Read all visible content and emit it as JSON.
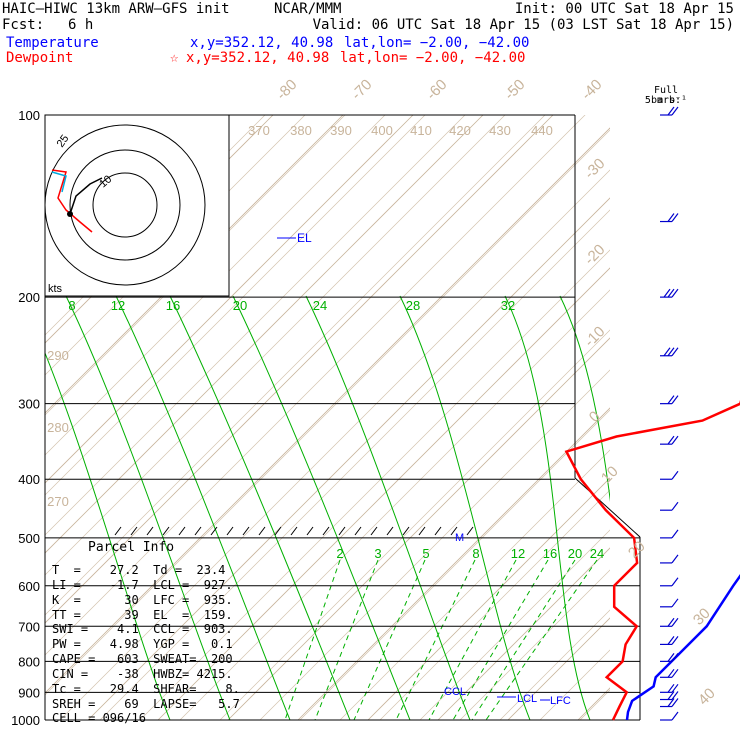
{
  "header": {
    "model": "HAIC–HIWC 13km ARW–GFS init",
    "org": "NCAR/MMM",
    "init": "Init: 00 UTC Sat 18 Apr 15",
    "fcst_label": "Fcst:",
    "fcst_value": "6 h",
    "valid": "Valid: 06 UTC Sat 18 Apr 15 (03 LST Sat 18 Apr 15)",
    "temperature_label": "Temperature",
    "dewpoint_label": "Dewpoint",
    "temp_xy": "x,y=352.12, 40.98",
    "temp_latlon": "lat,lon= −2.00, −42.00",
    "dew_star": "☆",
    "dew_xy": "x,y=352.12, 40.98",
    "dew_latlon": "lat,lon= −2.00, −42.00",
    "barb_legend_1": "Full barb:",
    "barb_legend_2": "5 m s⁻¹"
  },
  "colors": {
    "temperature": "#ff0000",
    "parcel": "#0000ff",
    "isotherm": "#c8b49b",
    "mixing_ratio": "#00b000",
    "isobar": "#000000",
    "barbs": "#0000cd"
  },
  "parcel_info": {
    "title": "Parcel Info",
    "rows": [
      "T  =    27.2  Td =  23.4",
      "LI =    -1.7  LCL =  927.",
      "K  =      30  LFC =  935.",
      "TT =      39  EL  =  159.",
      "SWI =    4.1  CCL =  903.",
      "PW =    4.98  YGP =   0.1",
      "CAPE =   603  SWEAT=  200",
      "CIN =    -38  HWBZ= 4215.",
      "Tc =    29.4  SHEAR=    8.",
      "SREH =    69  LAPSE=   5.7",
      "CELL = 096/16"
    ]
  },
  "chart_data": {
    "type": "line",
    "title": "",
    "ylabel": "",
    "xlabel": "",
    "y_scale": "log-pressure",
    "pressure_levels": [
      100,
      200,
      300,
      400,
      500,
      600,
      700,
      800,
      900,
      1000
    ],
    "isotherm_labels": [
      "-80",
      "-70",
      "-60",
      "-50",
      "-40",
      "-30",
      "-20",
      "-10",
      "0",
      "10",
      "20",
      "30",
      "40"
    ],
    "theta_labels": [
      "370",
      "380",
      "390",
      "400",
      "410",
      "420",
      "430",
      "440",
      "290",
      "280",
      "270"
    ],
    "mixing_ratio_labels_upper": [
      "8",
      "12",
      "16",
      "20",
      "24",
      "28",
      "32"
    ],
    "mixing_ratio_labels_lower": [
      "2",
      "3",
      "5",
      "8",
      "12",
      "16",
      "20",
      "24"
    ],
    "series": [
      {
        "points": [
          [
            100,
            -4
          ],
          [
            120,
            -8
          ],
          [
            140,
            -11
          ],
          [
            160,
            -14
          ],
          [
            180,
            -11
          ],
          [
            200,
            -6
          ],
          [
            250,
            -7
          ],
          [
            300,
            -2
          ],
          [
            320,
            -5
          ],
          [
            340,
            -15
          ],
          [
            360,
            -20
          ],
          [
            400,
            -14
          ],
          [
            450,
            -6
          ],
          [
            500,
            2
          ],
          [
            550,
            6
          ],
          [
            600,
            6
          ],
          [
            650,
            9
          ],
          [
            700,
            15
          ],
          [
            750,
            16
          ],
          [
            800,
            18
          ],
          [
            850,
            18
          ],
          [
            900,
            23
          ],
          [
            950,
            24
          ],
          [
            1000,
            25
          ]
        ]
      },
      {
        "points": [
          [
            100,
            0
          ],
          [
            120,
            -1
          ],
          [
            150,
            1
          ],
          [
            200,
            5
          ],
          [
            300,
            13
          ],
          [
            400,
            18
          ],
          [
            500,
            21
          ],
          [
            600,
            23
          ],
          [
            700,
            25
          ],
          [
            800,
            25
          ],
          [
            850,
            25
          ],
          [
            880,
            26
          ],
          [
            930,
            25
          ],
          [
            970,
            26
          ],
          [
            1000,
            27
          ]
        ]
      }
    ],
    "annotations": [
      "EL",
      "M",
      "CCL",
      "LCL",
      "LFC",
      "kts"
    ],
    "hodograph": {
      "ring_labels": [
        "25",
        "10"
      ],
      "points": [
        [
          -25,
          2
        ],
        [
          -22,
          -3
        ],
        [
          -20,
          -8
        ],
        [
          -18,
          -11
        ],
        [
          -15,
          -13
        ],
        [
          -14,
          -15
        ],
        [
          -13,
          -18
        ],
        [
          -10,
          -22
        ],
        [
          -6,
          -28
        ]
      ]
    },
    "wind_barbs": [
      {
        "p": 100,
        "spd": 10
      },
      {
        "p": 150,
        "spd": 10
      },
      {
        "p": 200,
        "spd": 15
      },
      {
        "p": 250,
        "spd": 15
      },
      {
        "p": 300,
        "spd": 10
      },
      {
        "p": 350,
        "spd": 10
      },
      {
        "p": 400,
        "spd": 5
      },
      {
        "p": 450,
        "spd": 5
      },
      {
        "p": 500,
        "spd": 5
      },
      {
        "p": 550,
        "spd": 5
      },
      {
        "p": 600,
        "spd": 5
      },
      {
        "p": 650,
        "spd": 5
      },
      {
        "p": 700,
        "spd": 10
      },
      {
        "p": 750,
        "spd": 10
      },
      {
        "p": 800,
        "spd": 10
      },
      {
        "p": 850,
        "spd": 10
      },
      {
        "p": 900,
        "spd": 10
      },
      {
        "p": 925,
        "spd": 10
      },
      {
        "p": 950,
        "spd": 10
      },
      {
        "p": 1000,
        "spd": 5
      }
    ],
    "grid": true
  }
}
